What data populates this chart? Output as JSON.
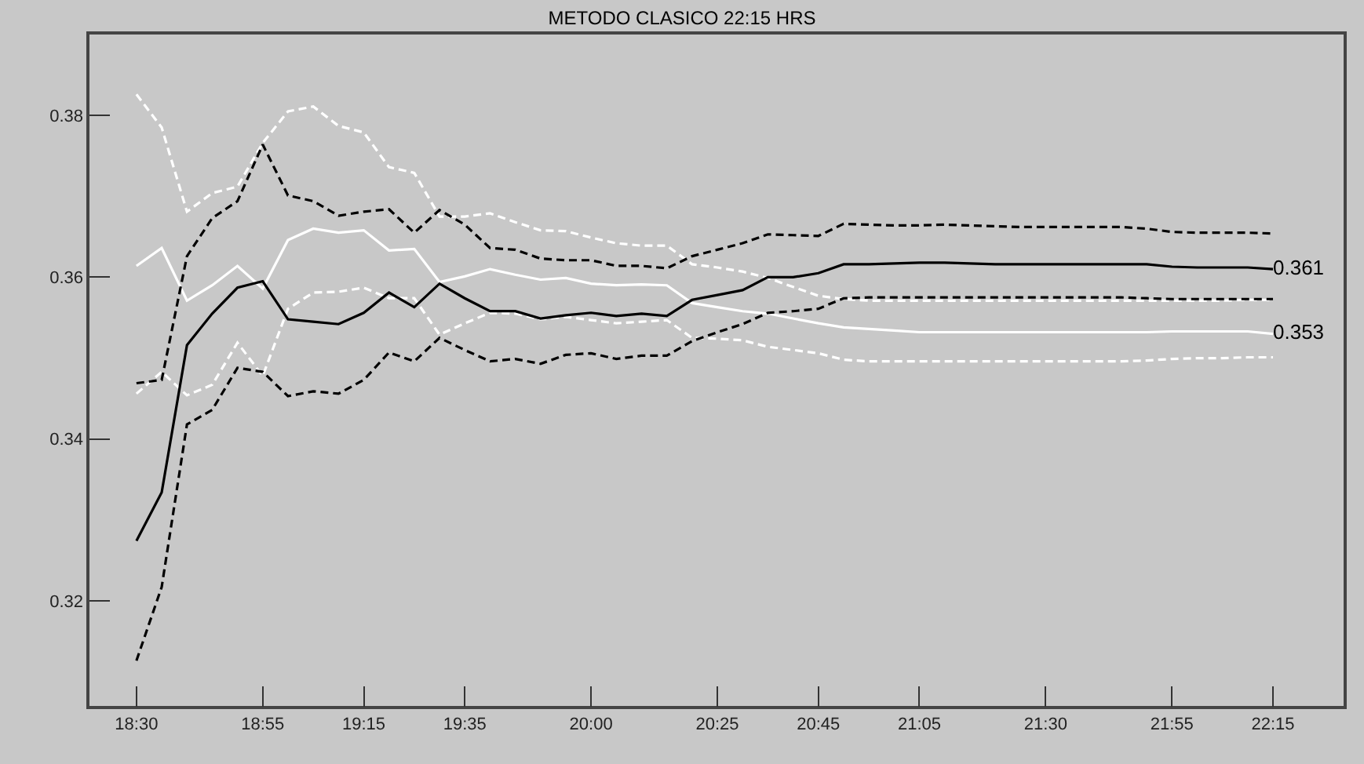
{
  "chart_data": {
    "type": "line",
    "title": "METODO CLASICO 22:15 HRS",
    "x": [
      18.5,
      18.5833,
      18.6667,
      18.75,
      18.8333,
      18.9167,
      19.0,
      19.0833,
      19.1667,
      19.25,
      19.3333,
      19.4167,
      19.5,
      19.5833,
      19.6667,
      19.75,
      19.8333,
      19.9167,
      20.0,
      20.0833,
      20.1667,
      20.25,
      20.3333,
      20.4167,
      20.5,
      20.5833,
      20.6667,
      20.75,
      20.8333,
      20.9167,
      21.0,
      21.0833,
      21.1667,
      21.25,
      21.3333,
      21.4167,
      21.5,
      21.5833,
      21.6667,
      21.75,
      21.8333,
      21.9167,
      22.0,
      22.0833,
      22.1667,
      22.25
    ],
    "series": [
      {
        "color": "#ffffff",
        "line_style": "dashed",
        "values": [
          0.3826,
          0.3785,
          0.3681,
          0.3704,
          0.3712,
          0.3766,
          0.3805,
          0.3811,
          0.3787,
          0.3779,
          0.3736,
          0.3729,
          0.3675,
          0.3675,
          0.3679,
          0.3668,
          0.3658,
          0.3657,
          0.3649,
          0.3642,
          0.3639,
          0.3639,
          0.3616,
          0.3612,
          0.3607,
          0.3599,
          0.3588,
          0.3577,
          0.3573,
          0.3571,
          0.3571,
          0.3571,
          0.3571,
          0.3571,
          0.3571,
          0.3571,
          0.3571,
          0.3571,
          0.3571,
          0.3571,
          0.3571,
          0.3571,
          0.3571,
          0.3571,
          0.3572,
          0.3572
        ]
      },
      {
        "color": "#ffffff",
        "line_style": "dashed",
        "values": [
          0.3456,
          0.3483,
          0.3454,
          0.3467,
          0.3519,
          0.3478,
          0.3561,
          0.3581,
          0.3582,
          0.3587,
          0.3574,
          0.3574,
          0.3529,
          0.3543,
          0.3556,
          0.3555,
          0.3548,
          0.3551,
          0.3547,
          0.3543,
          0.3545,
          0.3547,
          0.3525,
          0.3524,
          0.3522,
          0.3514,
          0.351,
          0.3506,
          0.3498,
          0.3496,
          0.3496,
          0.3496,
          0.3496,
          0.3496,
          0.3496,
          0.3496,
          0.3496,
          0.3496,
          0.3496,
          0.3496,
          0.3497,
          0.3499,
          0.35,
          0.35,
          0.3501,
          0.3501
        ]
      },
      {
        "color": "#ffffff",
        "line_style": "solid",
        "values": [
          0.3614,
          0.3636,
          0.3571,
          0.359,
          0.3614,
          0.3586,
          0.3646,
          0.366,
          0.3655,
          0.3658,
          0.3633,
          0.3635,
          0.3594,
          0.3601,
          0.361,
          0.3603,
          0.3597,
          0.3599,
          0.3592,
          0.359,
          0.3591,
          0.359,
          0.3568,
          0.3563,
          0.3558,
          0.3555,
          0.3549,
          0.3543,
          0.3538,
          0.3536,
          0.3534,
          0.3532,
          0.3532,
          0.3532,
          0.3532,
          0.3532,
          0.3532,
          0.3532,
          0.3532,
          0.3532,
          0.3532,
          0.3533,
          0.3533,
          0.3533,
          0.3533,
          0.353
        ],
        "value_labels": [
          null,
          null,
          null,
          null,
          null,
          null,
          null,
          null,
          null,
          null,
          null,
          null,
          null,
          null,
          null,
          null,
          null,
          null,
          null,
          null,
          null,
          null,
          null,
          null,
          null,
          null,
          null,
          null,
          null,
          null,
          null,
          null,
          null,
          null,
          null,
          null,
          null,
          null,
          null,
          null,
          null,
          null,
          null,
          null,
          null,
          "0.353"
        ]
      },
      {
        "color": "#000000",
        "line_style": "dashed",
        "values": [
          0.3469,
          0.3473,
          0.3626,
          0.3673,
          0.3694,
          0.3764,
          0.3701,
          0.3694,
          0.3676,
          0.3681,
          0.3684,
          0.3655,
          0.3683,
          0.3665,
          0.3636,
          0.3634,
          0.3623,
          0.3621,
          0.3621,
          0.3614,
          0.3614,
          0.3611,
          0.3626,
          0.3634,
          0.3642,
          0.3653,
          0.3652,
          0.3651,
          0.3666,
          0.3665,
          0.3664,
          0.3664,
          0.3665,
          0.3664,
          0.3663,
          0.3662,
          0.3662,
          0.3662,
          0.3662,
          0.3662,
          0.366,
          0.3656,
          0.3655,
          0.3655,
          0.3655,
          0.3654
        ]
      },
      {
        "color": "#000000",
        "line_style": "dashed",
        "values": [
          0.3126,
          0.3217,
          0.3418,
          0.3436,
          0.3488,
          0.3483,
          0.3453,
          0.3459,
          0.3456,
          0.3473,
          0.3507,
          0.3496,
          0.3525,
          0.351,
          0.3496,
          0.3499,
          0.3493,
          0.3504,
          0.3506,
          0.3499,
          0.3503,
          0.3503,
          0.3521,
          0.3532,
          0.3542,
          0.3556,
          0.3558,
          0.3561,
          0.3574,
          0.3575,
          0.3575,
          0.3575,
          0.3575,
          0.3575,
          0.3575,
          0.3575,
          0.3575,
          0.3575,
          0.3575,
          0.3575,
          0.3574,
          0.3573,
          0.3573,
          0.3573,
          0.3573,
          0.3573
        ]
      },
      {
        "color": "#000000",
        "line_style": "solid",
        "values": [
          0.3274,
          0.3334,
          0.3516,
          0.3555,
          0.3587,
          0.3595,
          0.3548,
          0.3545,
          0.3542,
          0.3556,
          0.3581,
          0.3563,
          0.3592,
          0.3574,
          0.3558,
          0.3558,
          0.3549,
          0.3553,
          0.3556,
          0.3552,
          0.3555,
          0.3552,
          0.3572,
          0.3578,
          0.3584,
          0.36,
          0.36,
          0.3605,
          0.3616,
          0.3616,
          0.3617,
          0.3618,
          0.3618,
          0.3617,
          0.3616,
          0.3616,
          0.3616,
          0.3616,
          0.3616,
          0.3616,
          0.3616,
          0.3613,
          0.3612,
          0.3612,
          0.3612,
          0.361
        ],
        "value_labels": [
          null,
          null,
          null,
          null,
          null,
          null,
          null,
          null,
          null,
          null,
          null,
          null,
          null,
          null,
          null,
          null,
          null,
          null,
          null,
          null,
          null,
          null,
          null,
          null,
          null,
          null,
          null,
          null,
          null,
          null,
          null,
          null,
          null,
          null,
          null,
          null,
          null,
          null,
          null,
          null,
          null,
          null,
          null,
          null,
          null,
          "0.361"
        ]
      }
    ],
    "xlim": [
      18.345,
      22.483
    ],
    "xticks": [
      {
        "value": 18.5,
        "label": "18:30"
      },
      {
        "value": 18.9167,
        "label": "18:55"
      },
      {
        "value": 19.25,
        "label": "19:15"
      },
      {
        "value": 19.5833,
        "label": "19:35"
      },
      {
        "value": 20.0,
        "label": "20:00"
      },
      {
        "value": 20.4167,
        "label": "20:25"
      },
      {
        "value": 20.75,
        "label": "20:45"
      },
      {
        "value": 21.0833,
        "label": "21:05"
      },
      {
        "value": 21.5,
        "label": "21:30"
      },
      {
        "value": 21.9167,
        "label": "21:55"
      },
      {
        "value": 22.25,
        "label": "22:15"
      }
    ],
    "ylim": [
      0.307,
      0.39
    ],
    "yticks": [
      0.32,
      0.34,
      0.36,
      0.38
    ],
    "grid": false,
    "marker": "none"
  }
}
